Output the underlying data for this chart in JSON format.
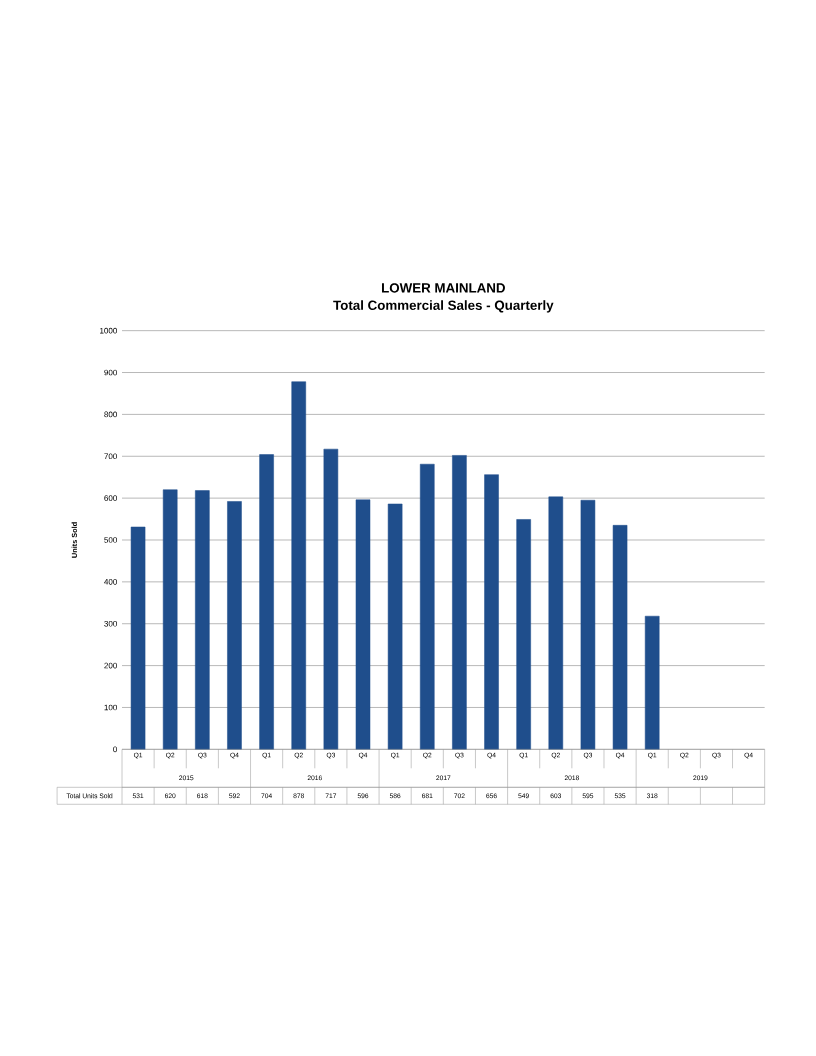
{
  "chart_data": {
    "type": "bar",
    "title": "LOWER MAINLAND",
    "subtitle": "Total Commercial Sales - Quarterly",
    "ylabel": "Units Sold",
    "categories": [
      "Q1",
      "Q2",
      "Q3",
      "Q4",
      "Q1",
      "Q2",
      "Q3",
      "Q4",
      "Q1",
      "Q2",
      "Q3",
      "Q4",
      "Q1",
      "Q2",
      "Q3",
      "Q4",
      "Q1",
      "Q2",
      "Q3",
      "Q4"
    ],
    "values": [
      531,
      620,
      618,
      592,
      704,
      878,
      717,
      596,
      586,
      681,
      702,
      656,
      549,
      603,
      595,
      535,
      318,
      null,
      null,
      null
    ],
    "color": "#1f4e8c",
    "ylim": [
      0,
      1000
    ],
    "yticks": [
      0,
      100,
      200,
      300,
      400,
      500,
      600,
      700,
      800,
      900,
      1000
    ],
    "grid": "y",
    "data_labels": true,
    "annotations": [
      "2015",
      "2016",
      "2017",
      "2018",
      "2019",
      "Total Units Sold"
    ]
  }
}
